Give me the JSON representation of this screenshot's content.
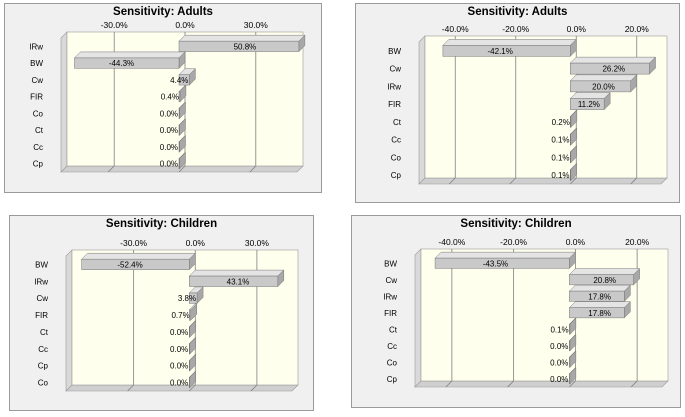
{
  "chart_data": [
    {
      "type": "bar",
      "title": "Sensitivity: Adults",
      "xlim": [
        -50,
        50
      ],
      "ticks": [
        -30,
        0,
        30
      ],
      "tick_labels": [
        "-30.0%",
        "0.0%",
        "30.0%"
      ],
      "categories": [
        "IRw",
        "BW",
        "Cw",
        "FIR",
        "Co",
        "Ct",
        "Cc",
        "Cp"
      ],
      "values": [
        50.8,
        -44.3,
        4.4,
        0.4,
        0.0,
        0.0,
        0.0,
        0.0
      ],
      "value_labels": [
        "50.8%",
        "-44.3%",
        "4.4%",
        "0.4%",
        "0.0%",
        "0.0%",
        "0.0%",
        "0.0%"
      ],
      "grid": true,
      "legend": "none"
    },
    {
      "type": "bar",
      "title": "Sensitivity: Adults",
      "xlim": [
        -50,
        30
      ],
      "ticks": [
        -40,
        -20,
        0,
        20
      ],
      "tick_labels": [
        "-40.0%",
        "-20.0%",
        "0.0%",
        "20.0%"
      ],
      "categories": [
        "BW",
        "Cw",
        "IRw",
        "FIR",
        "Ct",
        "Cc",
        "Co",
        "Cp"
      ],
      "values": [
        -42.1,
        26.2,
        20.0,
        11.2,
        0.2,
        0.1,
        0.1,
        0.1
      ],
      "value_labels": [
        "-42.1%",
        "26.2%",
        "20.0%",
        "11.2%",
        "0.2%",
        "0.1%",
        "0.1%",
        "0.1%"
      ],
      "grid": true,
      "legend": "none"
    },
    {
      "type": "bar",
      "title": "Sensitivity: Children",
      "xlim": [
        -60,
        50
      ],
      "ticks": [
        -30,
        0,
        30
      ],
      "tick_labels": [
        "-30.0%",
        "0.0%",
        "30.0%"
      ],
      "categories": [
        "BW",
        "IRw",
        "Cw",
        "FIR",
        "Ct",
        "Cc",
        "Cp",
        "Co"
      ],
      "values": [
        -52.4,
        43.1,
        3.8,
        0.7,
        0.0,
        0.0,
        0.0,
        0.0
      ],
      "value_labels": [
        "-52.4%",
        "43.1%",
        "3.8%",
        "0.7%",
        "0.0%",
        "0.0%",
        "0.0%",
        "0.0%"
      ],
      "grid": true,
      "legend": "none"
    },
    {
      "type": "bar",
      "title": "Sensitivity: Children",
      "xlim": [
        -50,
        30
      ],
      "ticks": [
        -40,
        -20,
        0,
        20
      ],
      "tick_labels": [
        "-40.0%",
        "-20.0%",
        "0.0%",
        "20.0%"
      ],
      "categories": [
        "BW",
        "Cw",
        "IRw",
        "FIR",
        "Ct",
        "Cc",
        "Co",
        "Cp"
      ],
      "values": [
        -43.5,
        20.8,
        17.8,
        17.8,
        0.1,
        0.0,
        0.0,
        0.0
      ],
      "value_labels": [
        "-43.5%",
        "20.8%",
        "17.8%",
        "17.8%",
        "0.1%",
        "0.0%",
        "0.0%",
        "0.0%"
      ],
      "grid": true,
      "legend": "none"
    }
  ],
  "colors": {
    "plot_bg": "#ffffee",
    "bar_front": "#c9c9c9",
    "bar_top": "#e4e4e4",
    "bar_side": "#a8a8a8",
    "wall": "#d9d9d9",
    "floor": "#cfcfcf",
    "grid": "#808080",
    "panel_bg": "#f0f0f0"
  }
}
